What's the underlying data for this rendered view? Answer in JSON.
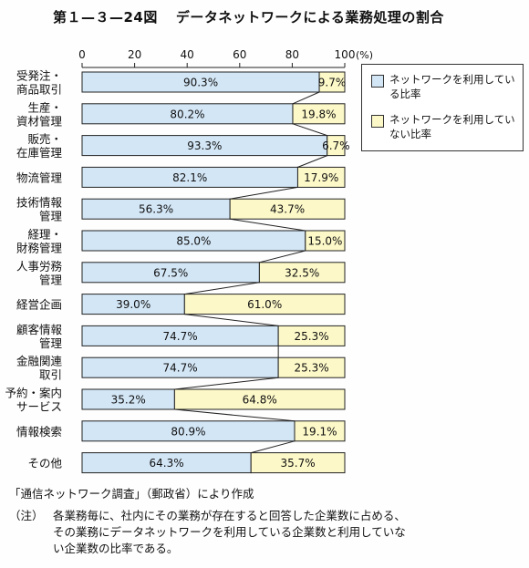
{
  "title": {
    "figure_no": "第１—３—24図",
    "text": "データネットワークによる業務処理の割合"
  },
  "legend": {
    "items": [
      {
        "label": "ネットワークを利用している比率",
        "color": "#d3e6f6"
      },
      {
        "label": "ネットワークを利用していない比率",
        "color": "#fcf8c8"
      }
    ]
  },
  "source": "「通信ネットワーク調査」（郵政省）により作成",
  "note": {
    "mark": "（注）",
    "text": "各業務毎に、社内にその業務が存在すると回答した企業数に占める、その業務にデータネットワークを利用している企業数と利用していない企業数の比率である。"
  },
  "chart_data": {
    "type": "bar",
    "stacked": true,
    "orientation": "horizontal",
    "xlim": [
      0,
      100
    ],
    "x_ticks": [
      "0",
      "20",
      "40",
      "60",
      "80",
      "100"
    ],
    "x_unit": "(%)",
    "categories": [
      [
        "受発注・",
        "商品取引"
      ],
      [
        "生産・",
        "資材管理"
      ],
      [
        "販売・",
        "在庫管理"
      ],
      [
        "物流管理"
      ],
      [
        "技術情報",
        "管理"
      ],
      [
        "経理・",
        "財務管理"
      ],
      [
        "人事労務",
        "管理"
      ],
      [
        "経営企画"
      ],
      [
        "顧客情報",
        "管理"
      ],
      [
        "金融関連",
        "取引"
      ],
      [
        "予約・案内",
        "サービス"
      ],
      [
        "情報検索"
      ],
      [
        "その他"
      ]
    ],
    "series": [
      {
        "name": "ネットワークを利用している比率",
        "color": "#d3e6f6",
        "values": [
          90.3,
          80.2,
          93.3,
          82.1,
          56.3,
          85.0,
          67.5,
          39.0,
          74.7,
          74.7,
          35.2,
          80.9,
          64.3
        ],
        "labels": [
          "90.3%",
          "80.2%",
          "93.3%",
          "82.1%",
          "56.3%",
          "85.0%",
          "67.5%",
          "39.0%",
          "74.7%",
          "74.7%",
          "35.2%",
          "80.9%",
          "64.3%"
        ]
      },
      {
        "name": "ネットワークを利用していない比率",
        "color": "#fcf8c8",
        "values": [
          9.7,
          19.8,
          6.7,
          17.9,
          43.7,
          15.0,
          32.5,
          61.0,
          25.3,
          25.3,
          64.8,
          19.1,
          35.7
        ],
        "labels": [
          "9.7%",
          "19.8%",
          "6.7%",
          "17.9%",
          "43.7%",
          "15.0%",
          "32.5%",
          "61.0%",
          "25.3%",
          "25.3%",
          "64.8%",
          "19.1%",
          "35.7%"
        ]
      }
    ]
  }
}
